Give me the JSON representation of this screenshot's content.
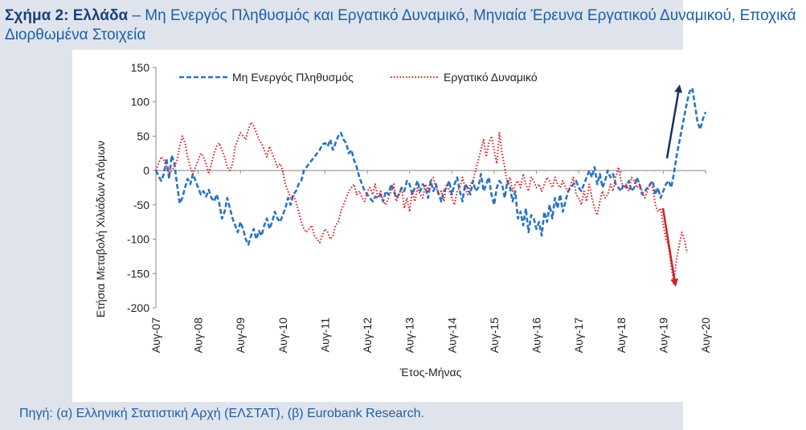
{
  "header": {
    "title_bold": "Σχήμα 2: Ελλάδα",
    "title_rest": " – Μη Ενεργός Πληθυσμός και Εργατικό Δυναμικό, Μηνιαία Έρευνα Εργατικού Δυναμικού, Εποχικά Διορθωμένα Στοιχεία"
  },
  "footer": {
    "source": "Πηγή: (α) Ελληνική Στατιστική Αρχή (ΕΛΣΤΑΤ), (β) Eurobank Research."
  },
  "colors": {
    "inactive": "#2a73c2",
    "labour": "#d9262c",
    "arrow_up": "#1b2f66",
    "arrow_down": "#c8262b",
    "axis": "#888888"
  },
  "chart_data": {
    "type": "line",
    "xlabel": "Έτος-Μήνας",
    "ylabel": "Ετήσια Μεταβολή Χιλιάδων Ατόμων",
    "ylim": [
      -200,
      150
    ],
    "yticks": [
      150,
      100,
      50,
      0,
      -50,
      -100,
      -150,
      -200
    ],
    "xticks": [
      "Αυγ-07",
      "Αυγ-08",
      "Αυγ-09",
      "Αυγ-10",
      "Αυγ-11",
      "Αυγ-12",
      "Αυγ-13",
      "Αυγ-14",
      "Αυγ-15",
      "Αυγ-16",
      "Αυγ-17",
      "Αυγ-18",
      "Αυγ-19",
      "Αυγ-20"
    ],
    "x_start": "2007-08",
    "x_end": "2020-08",
    "legend_position": "top-left",
    "series": [
      {
        "name": "Μη Ενεργός Πληθυσμός",
        "style": "dashed",
        "values": [
          0,
          -8,
          -15,
          -5,
          18,
          -12,
          22,
          10,
          -20,
          -48,
          -40,
          -25,
          -12,
          -20,
          -5,
          -15,
          -25,
          -35,
          -30,
          -38,
          -28,
          -40,
          -45,
          -35,
          -48,
          -70,
          -60,
          -40,
          -55,
          -70,
          -80,
          -90,
          -75,
          -85,
          -100,
          -108,
          -95,
          -85,
          -100,
          -88,
          -95,
          -80,
          -70,
          -85,
          -75,
          -60,
          -70,
          -75,
          -65,
          -55,
          -40,
          -50,
          -35,
          -30,
          -20,
          -15,
          0,
          5,
          10,
          15,
          20,
          25,
          30,
          38,
          40,
          35,
          45,
          30,
          40,
          50,
          55,
          45,
          40,
          25,
          30,
          15,
          5,
          -10,
          -20,
          -30,
          -35,
          -40,
          -45,
          -38,
          -40,
          -35,
          -45,
          -30,
          -35,
          -20,
          -30,
          -40,
          -35,
          -25,
          -30,
          -15,
          -20,
          -35,
          -25,
          -15,
          -30,
          -20,
          -25,
          -40,
          -15,
          -30,
          -20,
          -35,
          -45,
          -30,
          -25,
          -15,
          -35,
          -20,
          -10,
          -30,
          -45,
          -20,
          -25,
          -35,
          -15,
          -30,
          -25,
          -5,
          -30,
          -20,
          -10,
          -35,
          -50,
          -25,
          -15,
          -20,
          -40,
          -15,
          -25,
          -45,
          -30,
          -70,
          -60,
          -80,
          -55,
          -90,
          -65,
          -70,
          -85,
          -75,
          -95,
          -60,
          -75,
          -50,
          -70,
          -40,
          -55,
          -35,
          -60,
          -45,
          -30,
          -25,
          -20,
          -15,
          -25,
          -30,
          -20,
          -10,
          0,
          -10,
          5,
          -20,
          -5,
          -25,
          -15,
          0,
          -10,
          -5,
          -20,
          -25,
          -30,
          -20,
          -25,
          -15,
          -30,
          -25,
          -10,
          -20,
          -35,
          -30,
          -25,
          -20,
          -15,
          -35,
          -25,
          -40,
          -30,
          -20,
          -15,
          -25,
          -5,
          20,
          40,
          60,
          80,
          100,
          115,
          120,
          95,
          70,
          60,
          75,
          85
        ]
      },
      {
        "name": "Εργατικό Δυναμικό",
        "style": "dotted",
        "values": [
          0,
          10,
          20,
          15,
          5,
          -5,
          0,
          5,
          15,
          35,
          50,
          40,
          20,
          5,
          -5,
          5,
          15,
          25,
          20,
          10,
          -5,
          10,
          25,
          35,
          40,
          30,
          20,
          5,
          0,
          10,
          35,
          45,
          55,
          50,
          45,
          60,
          70,
          65,
          55,
          45,
          40,
          30,
          20,
          35,
          25,
          15,
          5,
          10,
          0,
          -20,
          -30,
          -40,
          -35,
          -45,
          -60,
          -75,
          -85,
          -90,
          -85,
          -80,
          -95,
          -100,
          -105,
          -95,
          -85,
          -90,
          -100,
          -95,
          -80,
          -75,
          -60,
          -50,
          -40,
          -30,
          -25,
          -20,
          -35,
          -30,
          -40,
          -45,
          -30,
          -25,
          -35,
          -20,
          -40,
          -30,
          -45,
          -50,
          -40,
          -30,
          -20,
          -45,
          -35,
          -25,
          -55,
          -40,
          -60,
          -30,
          -45,
          -25,
          -35,
          -40,
          -20,
          -30,
          -15,
          -10,
          -25,
          -35,
          -30,
          -45,
          -20,
          -30,
          -40,
          -50,
          -30,
          -25,
          -10,
          -25,
          -35,
          -20,
          -15,
          0,
          15,
          30,
          45,
          20,
          40,
          50,
          30,
          10,
          55,
          25,
          5,
          -20,
          -10,
          -30,
          -20,
          -15,
          -25,
          -5,
          -20,
          -30,
          -10,
          -15,
          -25,
          -20,
          -30,
          -20,
          -10,
          -15,
          -25,
          -10,
          -20,
          -25,
          -15,
          -25,
          -30,
          -20,
          -10,
          -35,
          -40,
          -50,
          -30,
          -45,
          -20,
          -40,
          -55,
          -65,
          -45,
          -30,
          -40,
          -35,
          -20,
          -30,
          -10,
          5,
          -15,
          -25,
          -20,
          -30,
          -10,
          -15,
          -25,
          -20,
          -30,
          -40,
          -30,
          -20,
          -25,
          -50,
          -60,
          -55,
          -80,
          -100,
          -110,
          -140,
          -165,
          -130,
          -110,
          -90,
          -100,
          -120
        ]
      }
    ],
    "annotations": [
      "arrow-up",
      "arrow-down"
    ]
  }
}
